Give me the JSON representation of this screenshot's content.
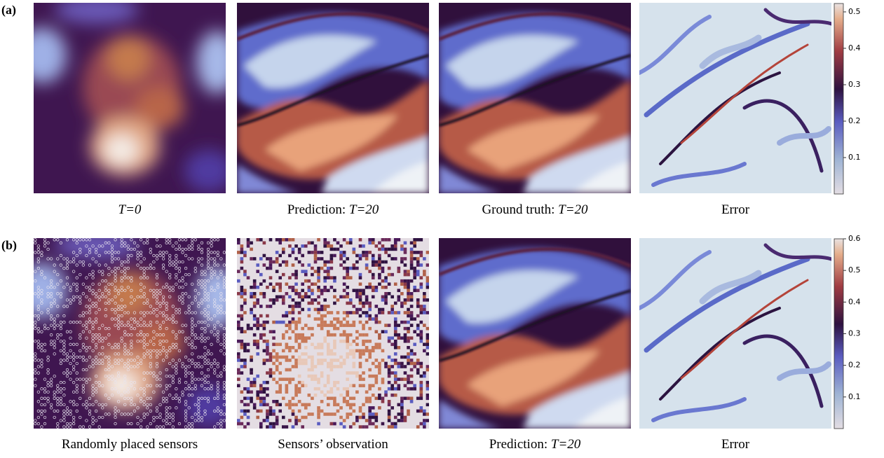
{
  "rows": [
    {
      "label": "(a)",
      "captions": [
        {
          "text": "",
          "em": "T=0"
        },
        {
          "text": "Prediction: ",
          "em": "T=20"
        },
        {
          "text": "Ground truth: ",
          "em": "T=20"
        },
        {
          "text": "Error",
          "em": ""
        }
      ],
      "colorbar": {
        "range": [
          0,
          0.523
        ],
        "ticks": [
          0.1,
          0.2,
          0.3,
          0.4,
          0.5
        ]
      }
    },
    {
      "label": "(b)",
      "captions": [
        {
          "text": "Randomly placed sensors",
          "em": ""
        },
        {
          "text": "Sensors’ observation",
          "em": ""
        },
        {
          "text": "Prediction: ",
          "em": "T=20"
        },
        {
          "text": "Error",
          "em": ""
        }
      ],
      "colorbar": {
        "range": [
          0,
          0.6
        ],
        "ticks": [
          0.1,
          0.2,
          0.3,
          0.4,
          0.5,
          0.6
        ]
      }
    }
  ]
}
